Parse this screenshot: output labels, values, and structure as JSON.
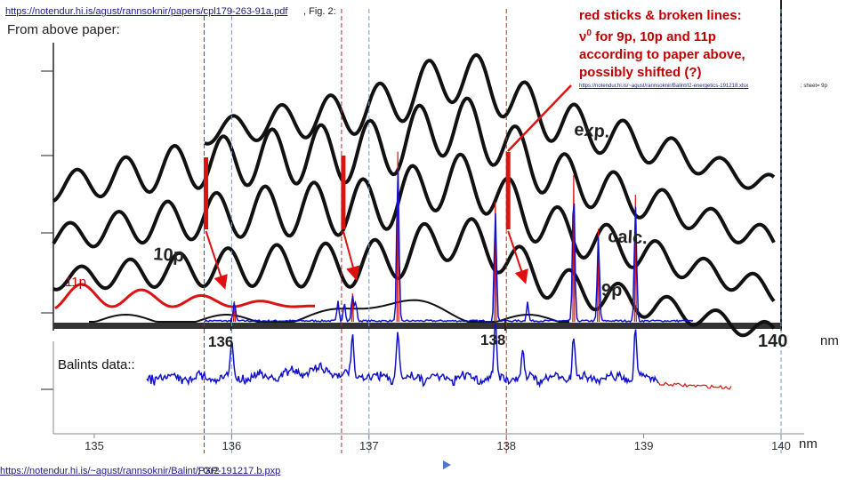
{
  "header": {
    "top_link": "https://notendur.hi.is/agust/rannsoknir/papers/cpl179-263-91a.pdf",
    "fig_note": ", Fig. 2:",
    "from_above": "From above paper:"
  },
  "annotation": {
    "line1": "red sticks & broken lines:",
    "line2_symbol": "ν",
    "line2_sup": "0",
    "line2_rest": " for 9p, 10p and 11p",
    "line3": "according to paper above,",
    "line4": "possibly shifted (?)",
    "small_link": "https://notendur.hi.is/~agust/rannsoknir/Balint/I2-energetics-191218.xlsx",
    "small_link_suffix": "; sheet= 9p"
  },
  "footer": {
    "bottom_link": "https://notendur.hi.is/~agust/rannsoknir/Balint/PXP-191217.b.pxp",
    "bottom_suffix": "; Gr2"
  },
  "scan_labels": {
    "exp": "exp.",
    "calc": "calc.",
    "p10": "10p",
    "p9": "9p",
    "p11": "11p"
  },
  "top_axis": {
    "ticks": [
      "136",
      "138",
      "140"
    ],
    "unit": "nm"
  },
  "colors": {
    "red": "#dd1111",
    "blue": "#1111cc",
    "black": "#111111",
    "red_dash": "#cc2222",
    "blue_dash": "#7a9fd0",
    "axis_gray": "#888888"
  },
  "chart_data": {
    "type": "line",
    "xlabel": "nm",
    "xlim": [
      134.7,
      140.3
    ],
    "x_ticks": [
      135,
      136,
      137,
      138,
      139,
      140
    ],
    "x_tick_labels": [
      "135",
      "136",
      "137",
      "138",
      "139",
      "140"
    ],
    "series_label": "Balints data::",
    "vertical_markers": {
      "red_dashed_nm": [
        135.8,
        136.8,
        138.0
      ],
      "blue_dashed_nm": [
        136.0,
        137.0,
        140.0
      ]
    },
    "nu0_sticks_nm": [
      135.8,
      136.8,
      138.0
    ],
    "peaks_nm": [
      136.02,
      136.88,
      137.21,
      137.92,
      138.49,
      138.67,
      138.94
    ]
  }
}
